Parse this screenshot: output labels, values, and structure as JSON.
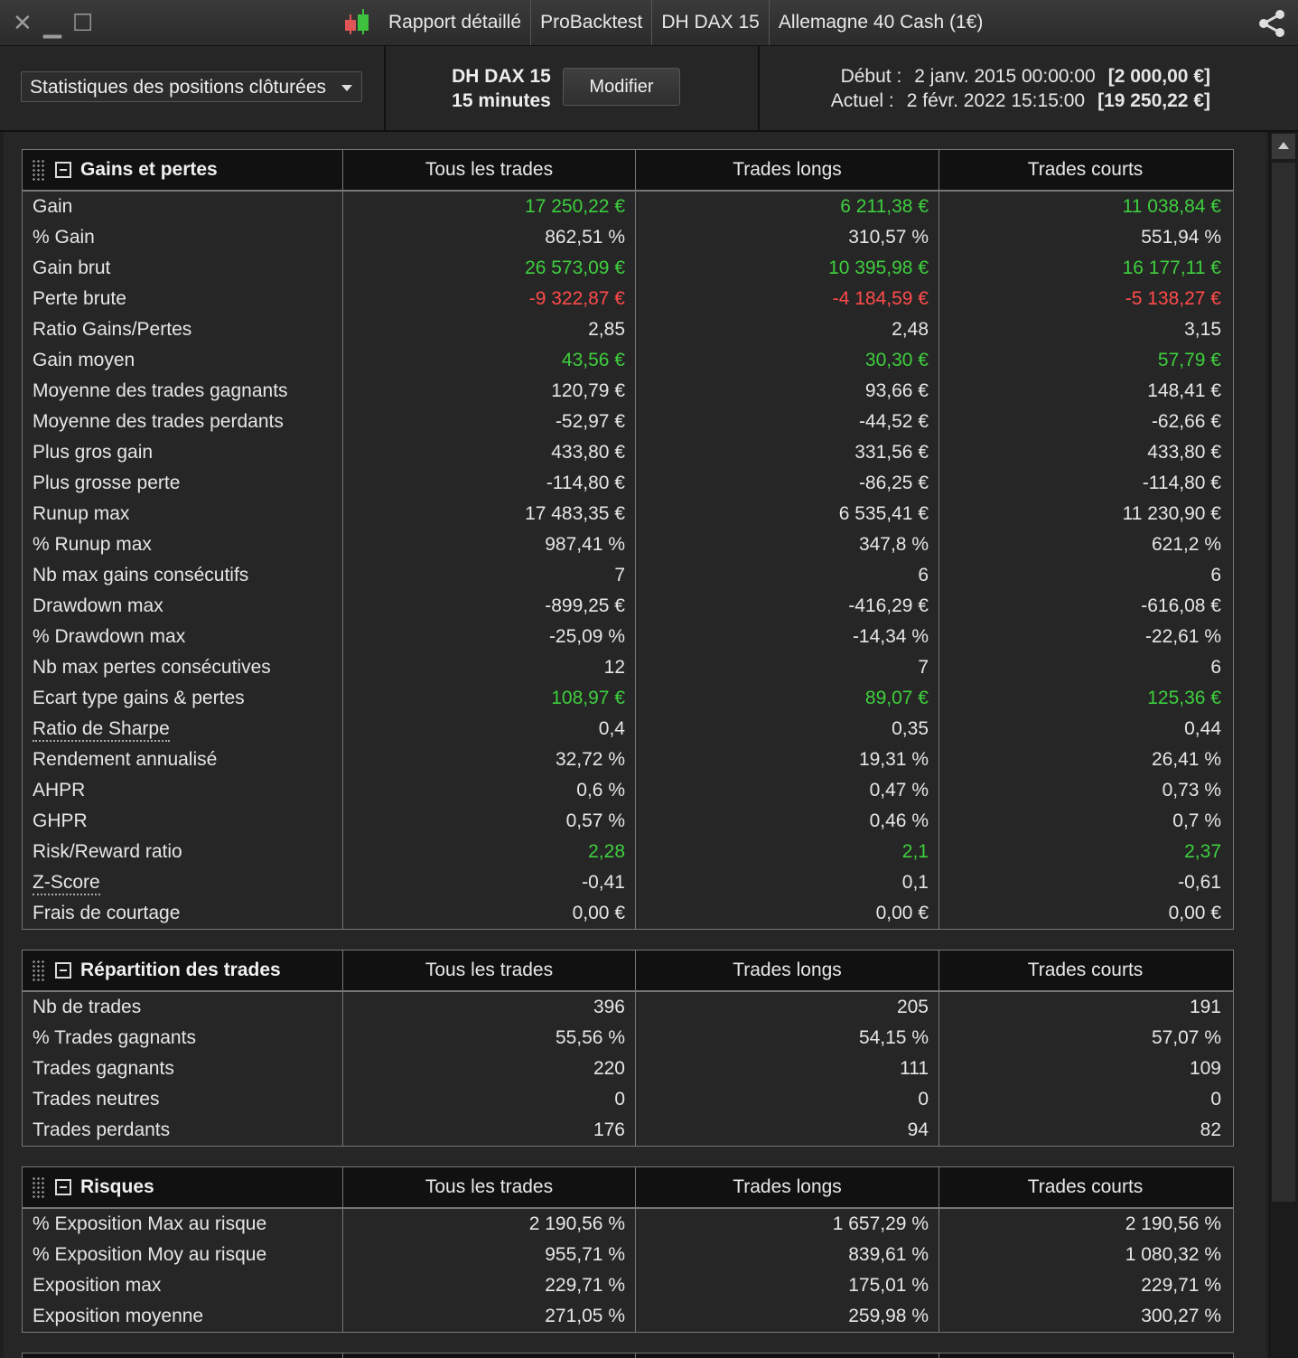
{
  "titlebar": {
    "tabs": [
      "Rapport détaillé",
      "ProBacktest",
      "DH DAX 15",
      "Allemagne 40 Cash (1€)"
    ],
    "icons": [
      "close-icon",
      "minimize-icon",
      "maximize-icon",
      "candlestick-icon",
      "share-icon"
    ]
  },
  "toolbar": {
    "view_select": "Statistiques des positions clôturées",
    "system_name": "DH DAX 15",
    "timeframe": "15 minutes",
    "modify_label": "Modifier",
    "start_label": "Début :",
    "start_date": "2 janv. 2015 00:00:00",
    "start_capital": "[2 000,00 €]",
    "current_label": "Actuel :",
    "current_date": "2 févr. 2022 15:15:00",
    "current_capital": "[19 250,22 €]"
  },
  "colors": {
    "positive": "#3ecf3e",
    "negative": "#ff4b4b",
    "background": "#262626"
  },
  "columns": [
    "Tous les trades",
    "Trades longs",
    "Trades courts"
  ],
  "sections": [
    {
      "title": "Gains et pertes",
      "rows": [
        {
          "label": "Gain",
          "values": [
            "17 250,22 €",
            "6 211,38 €",
            "11 038,84 €"
          ],
          "color": "green"
        },
        {
          "label": "% Gain",
          "values": [
            "862,51 %",
            "310,57 %",
            "551,94 %"
          ]
        },
        {
          "label": "Gain brut",
          "values": [
            "26 573,09 €",
            "10 395,98 €",
            "16 177,11 €"
          ],
          "color": "green"
        },
        {
          "label": "Perte brute",
          "values": [
            "-9 322,87 €",
            "-4 184,59 €",
            "-5 138,27 €"
          ],
          "color": "red"
        },
        {
          "label": "Ratio Gains/Pertes",
          "values": [
            "2,85",
            "2,48",
            "3,15"
          ]
        },
        {
          "label": "Gain moyen",
          "values": [
            "43,56 €",
            "30,30 €",
            "57,79 €"
          ],
          "color": "green"
        },
        {
          "label": "Moyenne des trades gagnants",
          "values": [
            "120,79 €",
            "93,66 €",
            "148,41 €"
          ]
        },
        {
          "label": "Moyenne des trades perdants",
          "values": [
            "-52,97 €",
            "-44,52 €",
            "-62,66 €"
          ]
        },
        {
          "label": "Plus gros gain",
          "values": [
            "433,80 €",
            "331,56 €",
            "433,80 €"
          ]
        },
        {
          "label": "Plus grosse perte",
          "values": [
            "-114,80 €",
            "-86,25 €",
            "-114,80 €"
          ]
        },
        {
          "label": "Runup max",
          "values": [
            "17 483,35 €",
            "6 535,41 €",
            "11 230,90 €"
          ]
        },
        {
          "label": "% Runup max",
          "values": [
            "987,41 %",
            "347,8 %",
            "621,2 %"
          ]
        },
        {
          "label": "Nb max gains consécutifs",
          "values": [
            "7",
            "6",
            "6"
          ]
        },
        {
          "label": "Drawdown max",
          "values": [
            "-899,25 €",
            "-416,29 €",
            "-616,08 €"
          ]
        },
        {
          "label": "% Drawdown max",
          "values": [
            "-25,09 %",
            "-14,34 %",
            "-22,61 %"
          ]
        },
        {
          "label": "Nb max pertes consécutives",
          "values": [
            "12",
            "7",
            "6"
          ]
        },
        {
          "label": "Ecart type gains & pertes",
          "values": [
            "108,97 €",
            "89,07 €",
            "125,36 €"
          ],
          "color": "green"
        },
        {
          "label": "Ratio de Sharpe",
          "values": [
            "0,4",
            "0,35",
            "0,44"
          ],
          "link": true
        },
        {
          "label": "Rendement annualisé",
          "values": [
            "32,72 %",
            "19,31 %",
            "26,41 %"
          ]
        },
        {
          "label": "AHPR",
          "values": [
            "0,6 %",
            "0,47 %",
            "0,73 %"
          ]
        },
        {
          "label": "GHPR",
          "values": [
            "0,57 %",
            "0,46 %",
            "0,7 %"
          ]
        },
        {
          "label": "Risk/Reward ratio",
          "values": [
            "2,28",
            "2,1",
            "2,37"
          ],
          "color": "green"
        },
        {
          "label": "Z-Score",
          "values": [
            "-0,41",
            "0,1",
            "-0,61"
          ],
          "link": true
        },
        {
          "label": "Frais de courtage",
          "values": [
            "0,00 €",
            "0,00 €",
            "0,00 €"
          ]
        }
      ]
    },
    {
      "title": "Répartition des trades",
      "rows": [
        {
          "label": "Nb de trades",
          "values": [
            "396",
            "205",
            "191"
          ]
        },
        {
          "label": "% Trades gagnants",
          "values": [
            "55,56 %",
            "54,15 %",
            "57,07 %"
          ]
        },
        {
          "label": "Trades gagnants",
          "values": [
            "220",
            "111",
            "109"
          ]
        },
        {
          "label": "Trades neutres",
          "values": [
            "0",
            "0",
            "0"
          ]
        },
        {
          "label": "Trades perdants",
          "values": [
            "176",
            "94",
            "82"
          ]
        }
      ]
    },
    {
      "title": "Risques",
      "rows": [
        {
          "label": "% Exposition Max au risque",
          "values": [
            "2 190,56 %",
            "1 657,29 %",
            "2 190,56 %"
          ]
        },
        {
          "label": "% Exposition Moy au risque",
          "values": [
            "955,71 %",
            "839,61 %",
            "1 080,32 %"
          ]
        },
        {
          "label": "Exposition max",
          "values": [
            "229,71 %",
            "175,01 %",
            "229,71 %"
          ]
        },
        {
          "label": "Exposition moyenne",
          "values": [
            "271,05 %",
            "259,98 %",
            "300,27 %"
          ]
        }
      ]
    }
  ]
}
